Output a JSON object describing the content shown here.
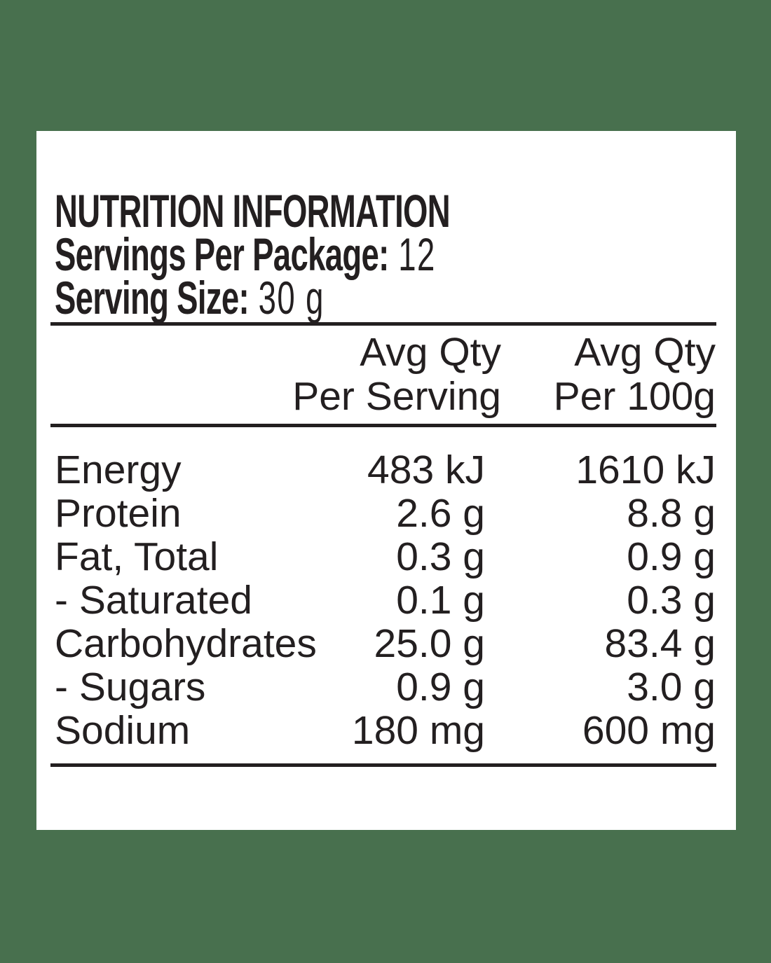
{
  "colors": {
    "background": "#48704e",
    "card": "#ffffff",
    "text": "#231f20"
  },
  "label": {
    "title": "NUTRITION INFORMATION",
    "servings_per_package_label": "Servings Per Package:",
    "servings_per_package_value": "12",
    "serving_size_label": "Serving Size:",
    "serving_size_value": "30 g"
  },
  "table": {
    "header": {
      "per_serving_line1": "Avg Qty",
      "per_serving_line2": "Per Serving",
      "per_100g_line1": "Avg Qty",
      "per_100g_line2": "Per 100g"
    },
    "rows": [
      {
        "nutrient": "Energy",
        "per_serving": "483 kJ",
        "per_100g": "1610 kJ"
      },
      {
        "nutrient": "Protein",
        "per_serving": "2.6 g",
        "per_100g": "8.8 g"
      },
      {
        "nutrient": "Fat, Total",
        "per_serving": "0.3 g",
        "per_100g": "0.9 g"
      },
      {
        "nutrient": "- Saturated",
        "per_serving": "0.1 g",
        "per_100g": "0.3 g"
      },
      {
        "nutrient": "Carbohydrates",
        "per_serving": "25.0 g",
        "per_100g": "83.4 g"
      },
      {
        "nutrient": "- Sugars",
        "per_serving": "0.9 g",
        "per_100g": "3.0 g"
      },
      {
        "nutrient": "Sodium",
        "per_serving": "180 mg",
        "per_100g": "600 mg"
      }
    ]
  }
}
